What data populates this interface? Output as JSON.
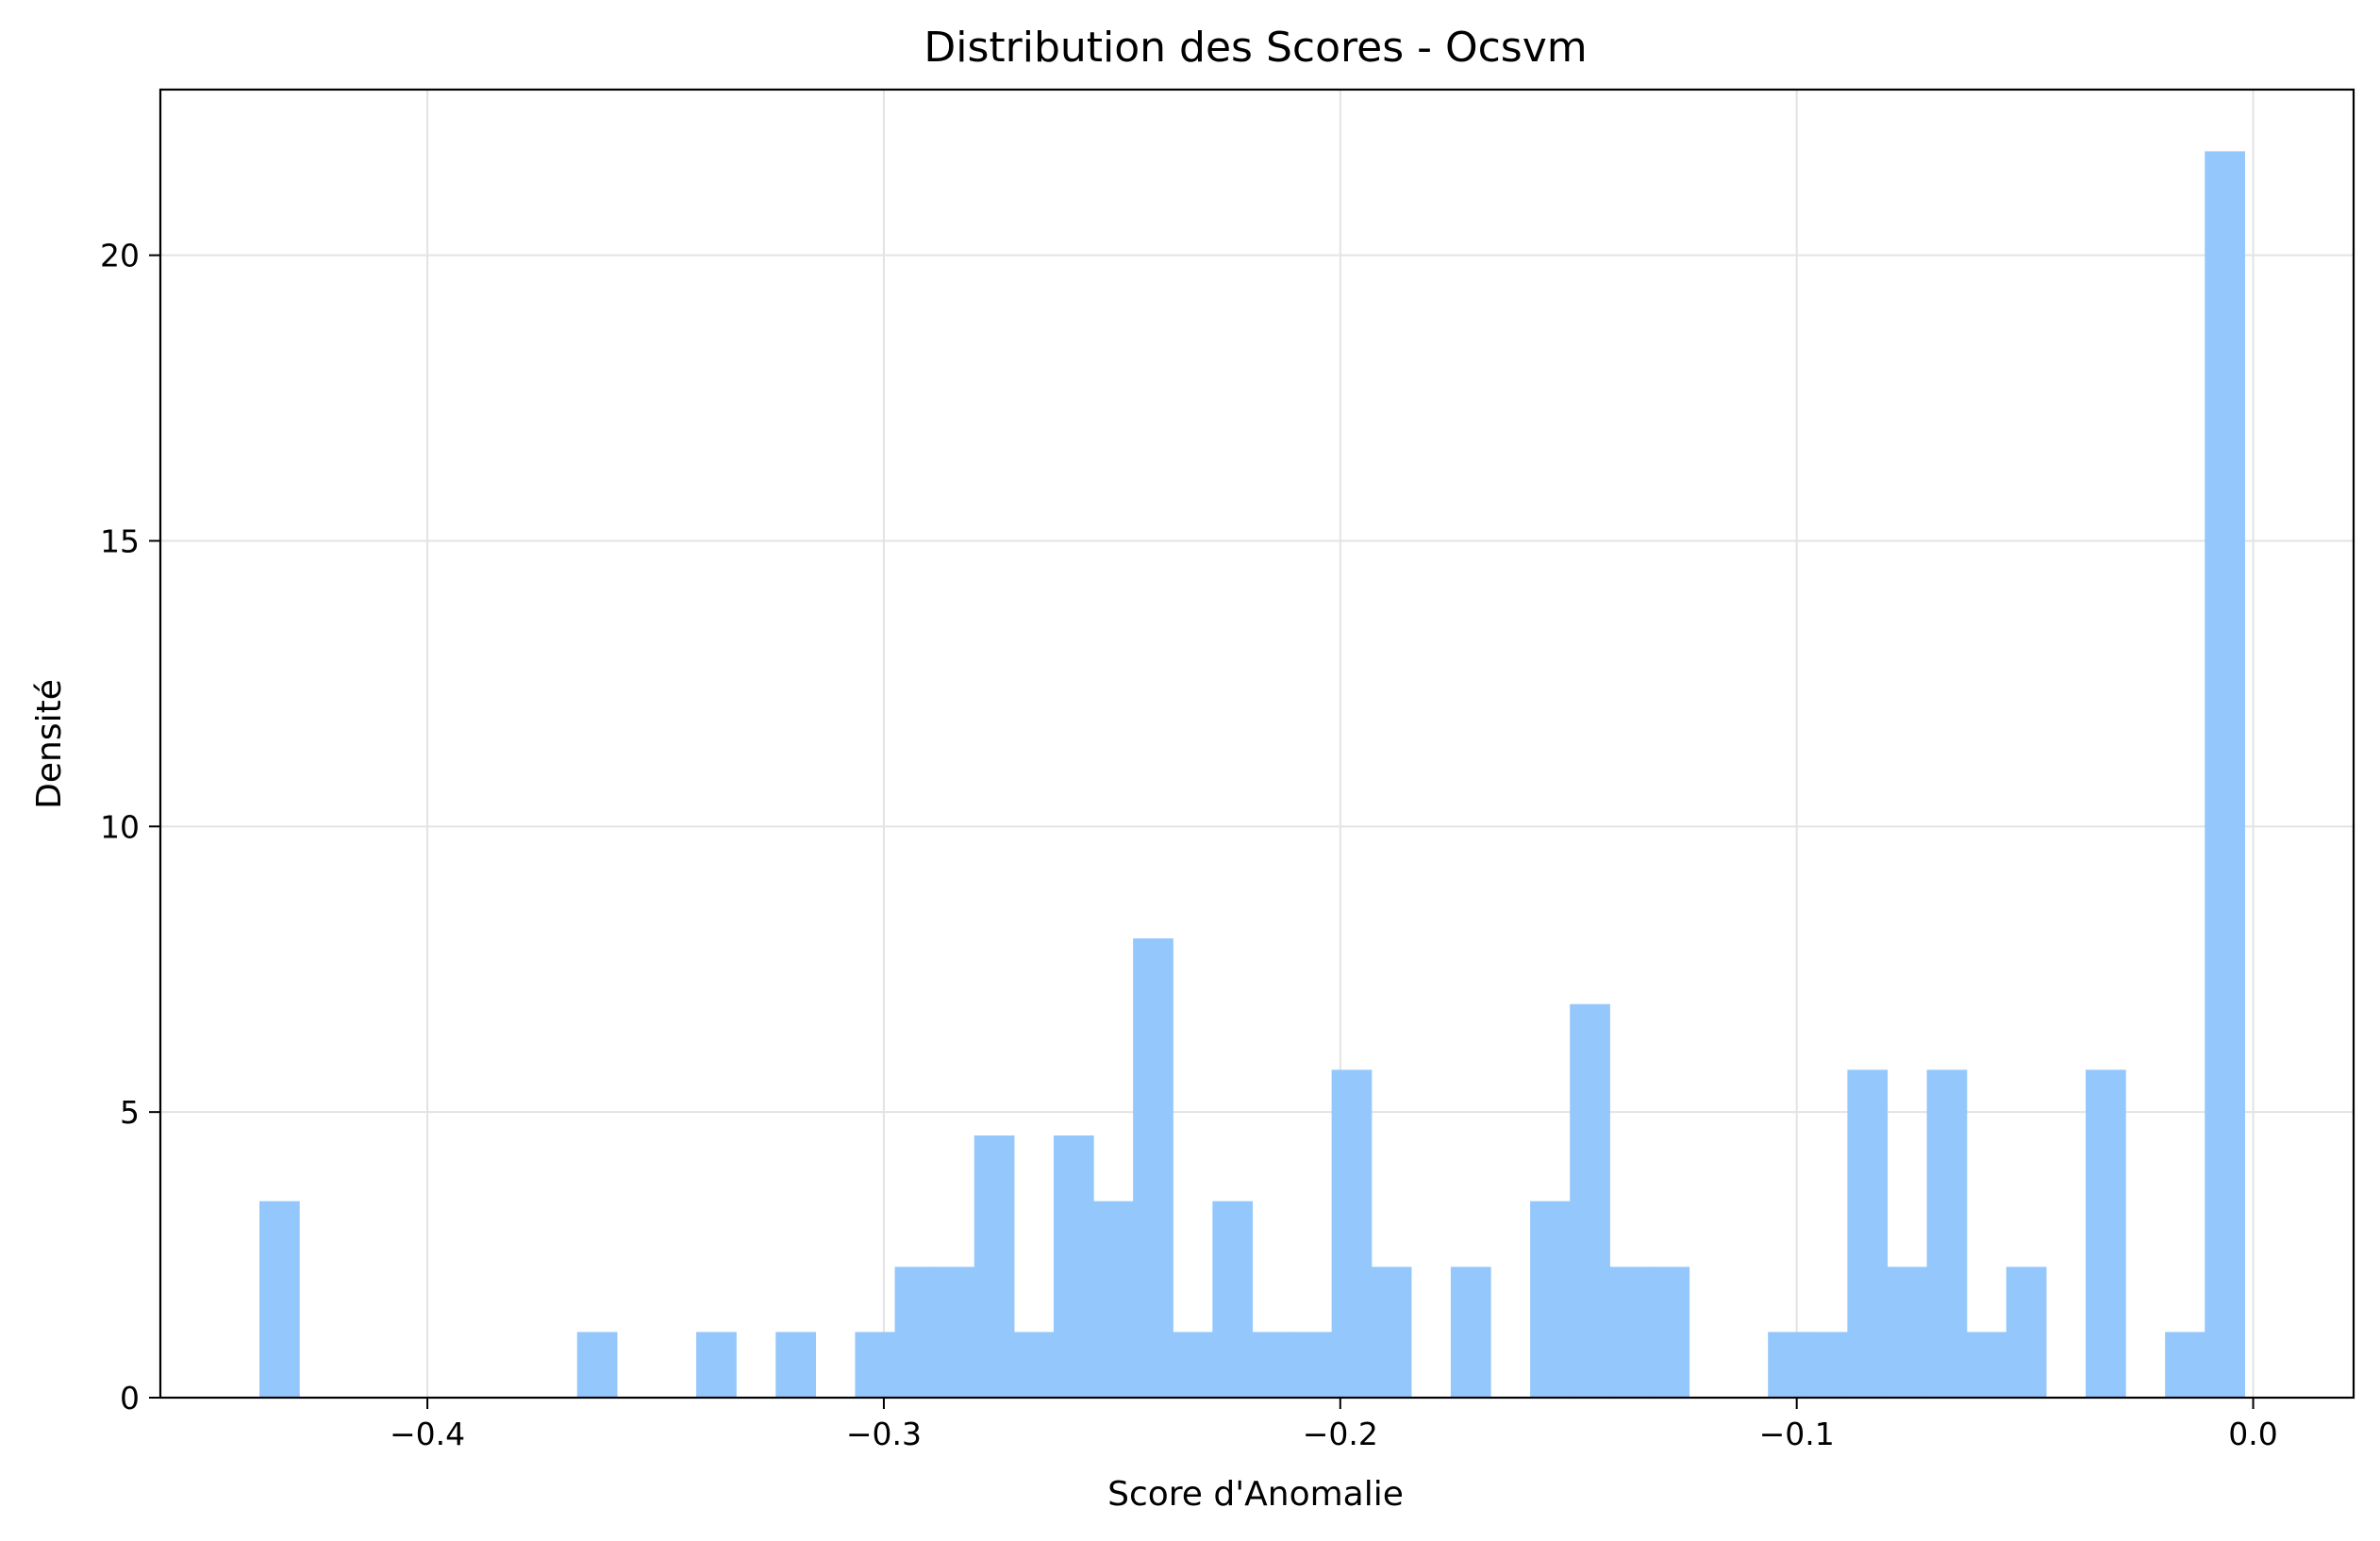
{
  "chart_data": {
    "type": "bar",
    "title": "Distribution des Scores - Ocsvm",
    "xlabel": "Score d'Anomalie",
    "ylabel": "Densité",
    "xlim": [
      -0.4585,
      0.022
    ],
    "ylim": [
      0,
      22.9
    ],
    "grid": true,
    "bar_color": "#94c7fb",
    "bin_width": 0.008705,
    "x_ticks": [
      {
        "value": -0.4,
        "label": "−0.4"
      },
      {
        "value": -0.3,
        "label": "−0.3"
      },
      {
        "value": -0.2,
        "label": "−0.2"
      },
      {
        "value": -0.1,
        "label": "−0.1"
      },
      {
        "value": 0.0,
        "label": "0.0"
      }
    ],
    "y_ticks": [
      {
        "value": 0,
        "label": "0"
      },
      {
        "value": 5,
        "label": "5"
      },
      {
        "value": 10,
        "label": "10"
      },
      {
        "value": 15,
        "label": "15"
      },
      {
        "value": 20,
        "label": "20"
      }
    ],
    "bins": [
      {
        "x0": -0.4368,
        "value": 3.44
      },
      {
        "x0": -0.3672,
        "value": 1.15
      },
      {
        "x0": -0.3411,
        "value": 1.15
      },
      {
        "x0": -0.3237,
        "value": 1.15
      },
      {
        "x0": -0.3063,
        "value": 1.15
      },
      {
        "x0": -0.2976,
        "value": 2.29
      },
      {
        "x0": -0.2889,
        "value": 2.29
      },
      {
        "x0": -0.2802,
        "value": 4.59
      },
      {
        "x0": -0.2715,
        "value": 1.15
      },
      {
        "x0": -0.2628,
        "value": 4.59
      },
      {
        "x0": -0.2541,
        "value": 3.44
      },
      {
        "x0": -0.2454,
        "value": 8.04
      },
      {
        "x0": -0.2367,
        "value": 1.15
      },
      {
        "x0": -0.228,
        "value": 3.44
      },
      {
        "x0": -0.2193,
        "value": 1.15
      },
      {
        "x0": -0.2106,
        "value": 1.15
      },
      {
        "x0": -0.2019,
        "value": 5.74
      },
      {
        "x0": -0.1932,
        "value": 2.29
      },
      {
        "x0": -0.1758,
        "value": 2.29
      },
      {
        "x0": -0.1584,
        "value": 3.44
      },
      {
        "x0": -0.1497,
        "value": 6.89
      },
      {
        "x0": -0.141,
        "value": 2.29
      },
      {
        "x0": -0.1323,
        "value": 2.29
      },
      {
        "x0": -0.1063,
        "value": 1.15
      },
      {
        "x0": -0.0976,
        "value": 1.15
      },
      {
        "x0": -0.0889,
        "value": 5.74
      },
      {
        "x0": -0.0802,
        "value": 2.29
      },
      {
        "x0": -0.0715,
        "value": 5.74
      },
      {
        "x0": -0.0628,
        "value": 1.15
      },
      {
        "x0": -0.0541,
        "value": 2.29
      },
      {
        "x0": -0.0367,
        "value": 5.74
      },
      {
        "x0": -0.0193,
        "value": 1.15
      },
      {
        "x0": -0.0106,
        "value": 21.82
      }
    ]
  }
}
